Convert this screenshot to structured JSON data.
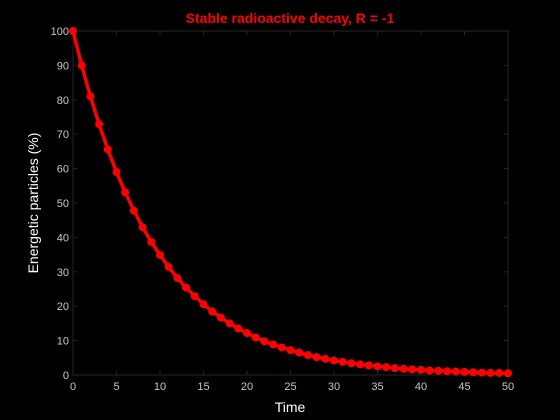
{
  "chart_data": {
    "type": "line",
    "title": "Stable radioactive decay, R = -1",
    "xlabel": "Time",
    "ylabel": "Energetic particles (%)",
    "xlim": [
      0,
      50
    ],
    "ylim": [
      0,
      100
    ],
    "xticks": [
      0,
      5,
      10,
      15,
      20,
      25,
      30,
      35,
      40,
      45,
      50
    ],
    "yticks": [
      0,
      10,
      20,
      30,
      40,
      50,
      60,
      70,
      80,
      90,
      100
    ],
    "grid": false,
    "series": [
      {
        "color": "#ff0000",
        "marker": "circle",
        "x": [
          0,
          1,
          2,
          3,
          4,
          5,
          6,
          7,
          8,
          9,
          10,
          11,
          12,
          13,
          14,
          15,
          16,
          17,
          18,
          19,
          20,
          21,
          22,
          23,
          24,
          25,
          26,
          27,
          28,
          29,
          30,
          31,
          32,
          33,
          34,
          35,
          36,
          37,
          38,
          39,
          40,
          41,
          42,
          43,
          44,
          45,
          46,
          47,
          48,
          49,
          50
        ],
        "y": [
          100,
          90,
          81,
          72.9,
          65.6,
          59,
          53.1,
          47.8,
          43,
          38.7,
          34.9,
          31.4,
          28.2,
          25.4,
          22.9,
          20.6,
          18.5,
          16.7,
          15,
          13.5,
          12.2,
          10.9,
          9.8,
          8.9,
          8,
          7.2,
          6.5,
          5.8,
          5.2,
          4.7,
          4.2,
          3.8,
          3.4,
          3.1,
          2.8,
          2.5,
          2.3,
          2,
          1.8,
          1.6,
          1.5,
          1.3,
          1.2,
          1.1,
          1,
          0.9,
          0.8,
          0.7,
          0.6,
          0.6,
          0.5
        ]
      }
    ],
    "colors": {
      "background": "#000000",
      "axes": "#262626",
      "tick_text": "#c8c8c8",
      "label_text": "#ffffff",
      "title_text": "#ff0000"
    }
  }
}
